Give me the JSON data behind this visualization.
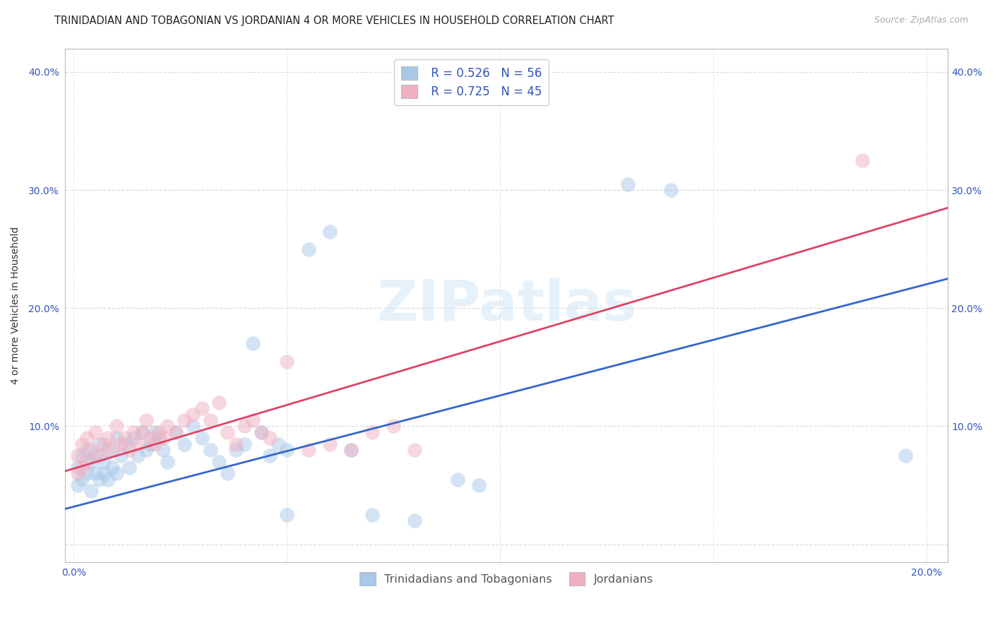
{
  "title": "TRINIDADIAN AND TOBAGONIAN VS JORDANIAN 4 OR MORE VEHICLES IN HOUSEHOLD CORRELATION CHART",
  "source": "Source: ZipAtlas.com",
  "ylabel": "4 or more Vehicles in Household",
  "xmin": -0.002,
  "xmax": 0.205,
  "ymin": -0.015,
  "ymax": 0.42,
  "xticks": [
    0.0,
    0.05,
    0.1,
    0.15,
    0.2
  ],
  "yticks": [
    0.0,
    0.1,
    0.2,
    0.3,
    0.4
  ],
  "xtick_labels": [
    "0.0%",
    "",
    "",
    "",
    "20.0%"
  ],
  "ytick_labels": [
    "",
    "10.0%",
    "20.0%",
    "30.0%",
    "40.0%"
  ],
  "blue_color": "#a8c8e8",
  "pink_color": "#f0b0c0",
  "blue_line_color": "#3366cc",
  "pink_line_color": "#dd4466",
  "blue_line_x0": -0.002,
  "blue_line_y0": 0.03,
  "blue_line_x1": 0.205,
  "blue_line_y1": 0.225,
  "pink_line_x0": -0.002,
  "pink_line_y0": 0.062,
  "pink_line_x1": 0.205,
  "pink_line_y1": 0.285,
  "legend_r1": "R = 0.526",
  "legend_n1": "N = 56",
  "legend_r2": "R = 0.725",
  "legend_n2": "N = 45",
  "watermark": "ZIPatlas",
  "legend_label1": "Trinidadians and Tobagonians",
  "legend_label2": "Jordanians",
  "blue_scatter_x": [
    0.001,
    0.001,
    0.002,
    0.002,
    0.003,
    0.003,
    0.004,
    0.004,
    0.005,
    0.005,
    0.006,
    0.006,
    0.007,
    0.007,
    0.008,
    0.008,
    0.009,
    0.01,
    0.01,
    0.011,
    0.012,
    0.013,
    0.014,
    0.015,
    0.016,
    0.017,
    0.018,
    0.019,
    0.02,
    0.021,
    0.022,
    0.024,
    0.026,
    0.028,
    0.03,
    0.032,
    0.034,
    0.036,
    0.038,
    0.04,
    0.042,
    0.044,
    0.046,
    0.048,
    0.05,
    0.055,
    0.06,
    0.065,
    0.07,
    0.08,
    0.09,
    0.13,
    0.14,
    0.195,
    0.095,
    0.05
  ],
  "blue_scatter_y": [
    0.065,
    0.05,
    0.075,
    0.055,
    0.08,
    0.06,
    0.07,
    0.045,
    0.075,
    0.06,
    0.085,
    0.055,
    0.07,
    0.06,
    0.08,
    0.055,
    0.065,
    0.09,
    0.06,
    0.075,
    0.085,
    0.065,
    0.09,
    0.075,
    0.095,
    0.08,
    0.085,
    0.095,
    0.09,
    0.08,
    0.07,
    0.095,
    0.085,
    0.1,
    0.09,
    0.08,
    0.07,
    0.06,
    0.08,
    0.085,
    0.17,
    0.095,
    0.075,
    0.085,
    0.08,
    0.25,
    0.265,
    0.08,
    0.025,
    0.02,
    0.055,
    0.305,
    0.3,
    0.075,
    0.05,
    0.025
  ],
  "pink_scatter_x": [
    0.001,
    0.001,
    0.002,
    0.002,
    0.003,
    0.003,
    0.004,
    0.005,
    0.006,
    0.007,
    0.008,
    0.009,
    0.01,
    0.011,
    0.012,
    0.013,
    0.014,
    0.015,
    0.016,
    0.017,
    0.018,
    0.019,
    0.02,
    0.021,
    0.022,
    0.024,
    0.026,
    0.028,
    0.03,
    0.032,
    0.034,
    0.036,
    0.038,
    0.04,
    0.042,
    0.044,
    0.046,
    0.05,
    0.055,
    0.06,
    0.065,
    0.07,
    0.075,
    0.08,
    0.185
  ],
  "pink_scatter_y": [
    0.075,
    0.06,
    0.085,
    0.065,
    0.09,
    0.07,
    0.08,
    0.095,
    0.075,
    0.085,
    0.09,
    0.08,
    0.1,
    0.085,
    0.09,
    0.08,
    0.095,
    0.085,
    0.095,
    0.105,
    0.09,
    0.085,
    0.095,
    0.09,
    0.1,
    0.095,
    0.105,
    0.11,
    0.115,
    0.105,
    0.12,
    0.095,
    0.085,
    0.1,
    0.105,
    0.095,
    0.09,
    0.155,
    0.08,
    0.085,
    0.08,
    0.095,
    0.1,
    0.08,
    0.325
  ],
  "title_fontsize": 10.5,
  "source_fontsize": 9,
  "axis_label_fontsize": 10,
  "tick_fontsize": 10,
  "legend_fontsize": 12,
  "background_color": "#ffffff",
  "grid_color": "#dddddd",
  "tick_color": "#3355bb"
}
